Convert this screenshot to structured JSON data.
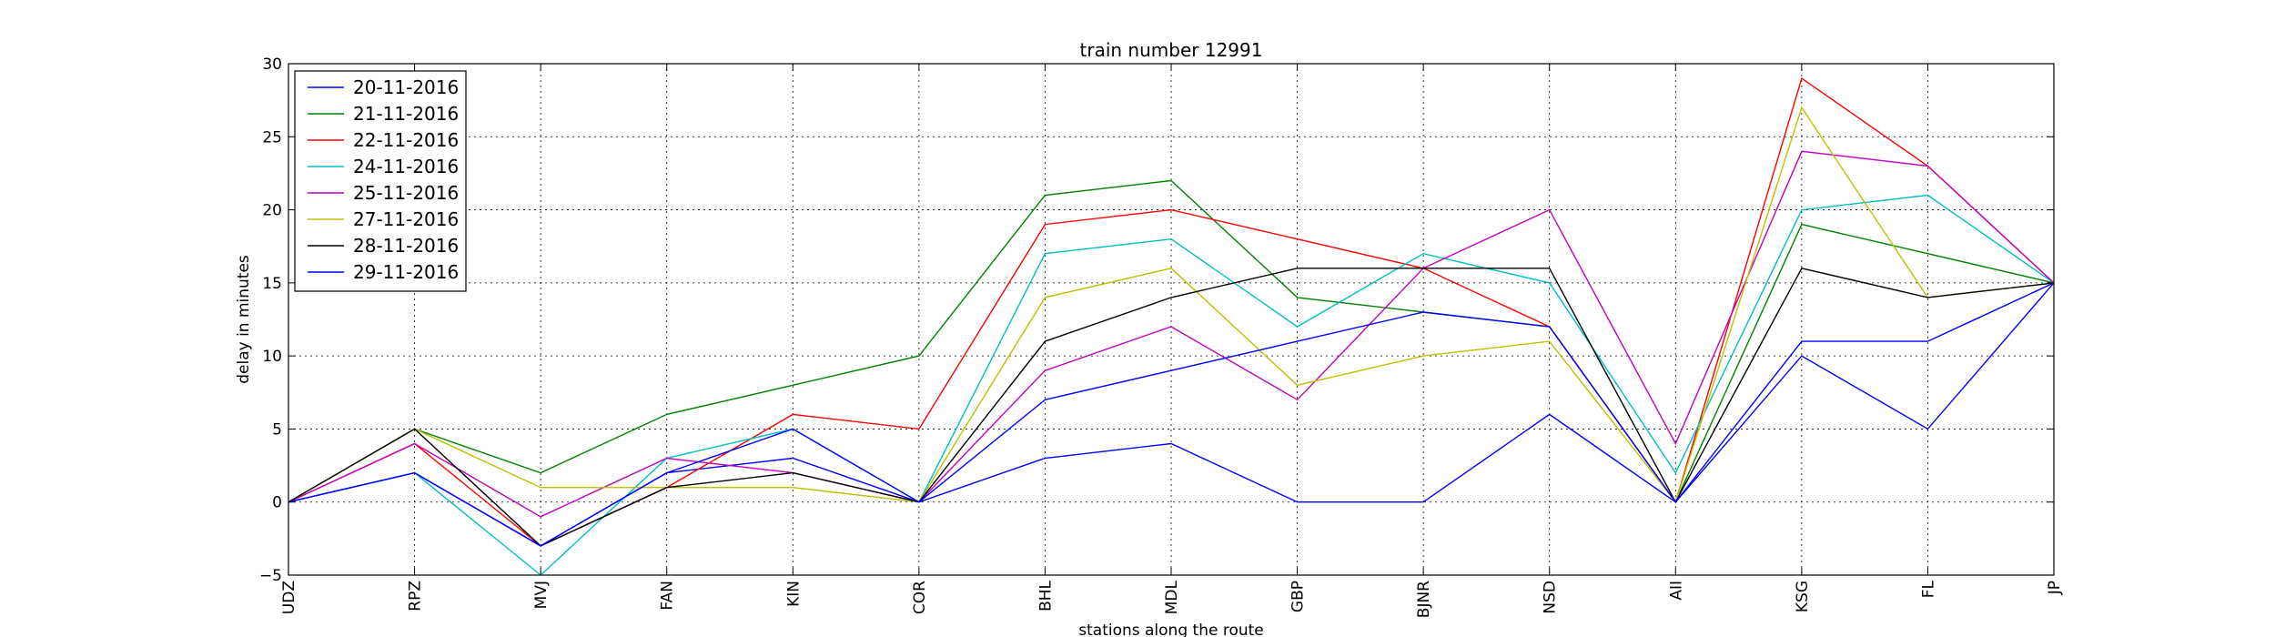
{
  "chart_data": {
    "type": "line",
    "title": "train number 12991",
    "xlabel": "stations along the route",
    "ylabel": "delay in minutes",
    "categories": [
      "UDZ",
      "RPZ",
      "MVJ",
      "FAN",
      "KIN",
      "COR",
      "BHL",
      "MDL",
      "GBP",
      "BJNR",
      "NSD",
      "AII",
      "KSG",
      "FL",
      "JP"
    ],
    "ylim": [
      -5,
      30
    ],
    "yticks": [
      -5,
      0,
      5,
      10,
      15,
      20,
      25,
      30
    ],
    "grid": true,
    "legend_position": "top-left",
    "series": [
      {
        "name": "20-11-2016",
        "color": "#0000ff",
        "values": [
          0,
          2,
          -3,
          2,
          3,
          0,
          3,
          4,
          0,
          0,
          6,
          0,
          10,
          5,
          15
        ]
      },
      {
        "name": "21-11-2016",
        "color": "#008000",
        "values": [
          0,
          5,
          2,
          6,
          8,
          10,
          21,
          22,
          14,
          13,
          12,
          0,
          19,
          17,
          15
        ]
      },
      {
        "name": "22-11-2016",
        "color": "#ff0000",
        "values": [
          0,
          4,
          -3,
          1,
          6,
          5,
          19,
          20,
          18,
          16,
          12,
          0,
          29,
          23,
          15
        ]
      },
      {
        "name": "24-11-2016",
        "color": "#00bfbf",
        "values": [
          0,
          2,
          -5,
          3,
          5,
          0,
          17,
          18,
          12,
          17,
          15,
          2,
          20,
          21,
          15
        ]
      },
      {
        "name": "25-11-2016",
        "color": "#bf00bf",
        "values": [
          0,
          4,
          -1,
          3,
          2,
          0,
          9,
          12,
          7,
          16,
          20,
          4,
          24,
          23,
          15
        ]
      },
      {
        "name": "27-11-2016",
        "color": "#bfbf00",
        "values": [
          0,
          5,
          1,
          1,
          1,
          0,
          14,
          16,
          8,
          10,
          11,
          0,
          27,
          14,
          15
        ]
      },
      {
        "name": "28-11-2016",
        "color": "#000000",
        "values": [
          0,
          5,
          -3,
          1,
          2,
          0,
          11,
          14,
          16,
          16,
          16,
          0,
          16,
          14,
          15
        ]
      },
      {
        "name": "29-11-2016",
        "color": "#0000ff",
        "values": [
          0,
          2,
          -3,
          2,
          5,
          0,
          7,
          9,
          11,
          13,
          12,
          0,
          11,
          11,
          15
        ]
      }
    ]
  }
}
